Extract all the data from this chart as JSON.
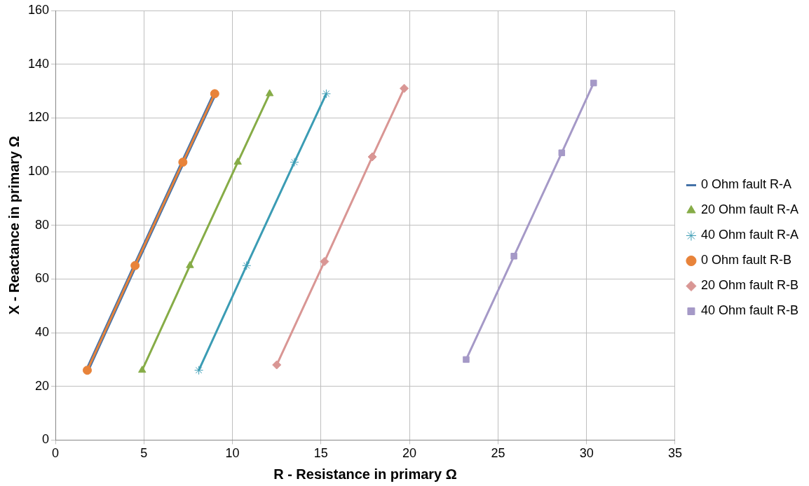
{
  "chart_data": {
    "type": "line",
    "xlabel": "R - Resistance in primary Ω",
    "ylabel": "X - Reactance in primary Ω",
    "xlim": [
      0,
      35
    ],
    "xticks": [
      0,
      5,
      10,
      15,
      20,
      25,
      30,
      35
    ],
    "ylim": [
      0,
      160
    ],
    "yticks": [
      0,
      20,
      40,
      60,
      80,
      100,
      120,
      140,
      160
    ],
    "grid": true,
    "legend": "right",
    "line_style": "solid",
    "series": [
      {
        "name": "0 Ohm fault R-A",
        "color": "#4472a8",
        "marker": "none",
        "x": [
          1.8,
          4.5,
          7.2,
          9.0
        ],
        "values": [
          26,
          65,
          103.5,
          129
        ]
      },
      {
        "name": "20 Ohm fault R-A",
        "color": "#86ac47",
        "marker": "triangle",
        "x": [
          4.9,
          7.6,
          10.3,
          12.1
        ],
        "values": [
          26,
          65,
          103.5,
          129
        ]
      },
      {
        "name": "40 Ohm fault R-A",
        "color": "#3b9cb4",
        "marker": "cross",
        "x": [
          8.1,
          10.8,
          13.5,
          15.3
        ],
        "values": [
          26,
          65,
          103.5,
          129
        ]
      },
      {
        "name": "0 Ohm fault R-B",
        "color": "#e8833a",
        "marker": "circle",
        "x": [
          1.8,
          4.5,
          7.2,
          9.0
        ],
        "values": [
          26,
          65,
          103.5,
          129
        ]
      },
      {
        "name": "20 Ohm fault R-B",
        "color": "#d99694",
        "marker": "diamond",
        "x": [
          12.5,
          15.2,
          17.9,
          19.7
        ],
        "values": [
          28,
          66.5,
          105.5,
          131
        ]
      },
      {
        "name": "40 Ohm fault R-B",
        "color": "#a599c7",
        "marker": "square",
        "x": [
          23.2,
          25.9,
          28.6,
          30.4
        ],
        "values": [
          30,
          68.5,
          107,
          133
        ]
      }
    ]
  }
}
